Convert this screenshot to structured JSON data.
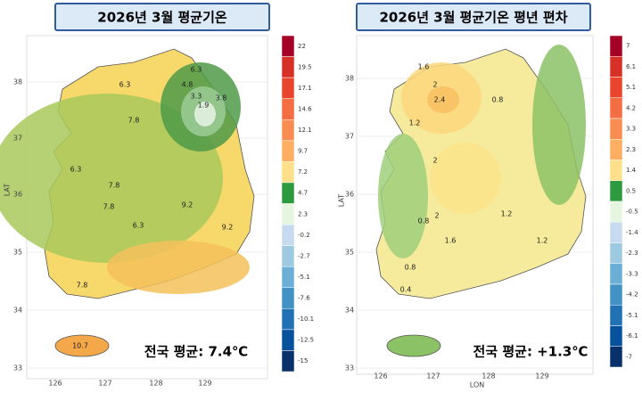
{
  "panels": [
    {
      "title": "2026년 3월 평균기온",
      "summary": "전국 평균: 7.4℃",
      "y_axis_label": "LAT",
      "lat_ticks": [
        "38",
        "37",
        "36",
        "35",
        "34",
        "33"
      ],
      "lon_ticks": [
        "126",
        "127",
        "128",
        "129"
      ],
      "legend_labels": [
        "22",
        "19.5",
        "17.1",
        "14.6",
        "12.1",
        "9.7",
        "7.2",
        "4.7",
        "2.3",
        "-0.2",
        "-2.7",
        "-5.1",
        "-7.6",
        "-10.1",
        "-12.5",
        "-15"
      ],
      "contour_labels": [
        "6.3",
        "4.8",
        "3.3",
        "1.9",
        "3.8",
        "6.3",
        "7.8",
        "6.3",
        "7.8",
        "7.8",
        "6.3",
        "9.2",
        "9.2",
        "7.8",
        "10.7"
      ]
    },
    {
      "title": "2026년 3월 평균기온 평년 편차",
      "summary": "전국 평균: +1.3℃",
      "y_axis_label": "LAT",
      "x_axis_label": "LON",
      "lat_ticks": [
        "38",
        "37",
        "36",
        "35",
        "34",
        "33"
      ],
      "lon_ticks": [
        "126",
        "127",
        "128",
        "129"
      ],
      "legend_labels": [
        "7",
        "6.1",
        "5.1",
        "4.2",
        "3.3",
        "2.3",
        "1.4",
        "0.5",
        "-0.5",
        "-1.4",
        "-2.3",
        "-3.3",
        "-4.2",
        "-5.1",
        "-6.1",
        "-7"
      ],
      "contour_labels": [
        "1.6",
        "2",
        "2.4",
        "1.2",
        "0.8",
        "2",
        "2",
        "0.8",
        "1.2",
        "1.6",
        "0.4",
        "0.8",
        "1.2"
      ]
    }
  ]
}
